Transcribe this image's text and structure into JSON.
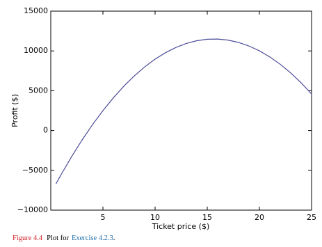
{
  "chart_data": {
    "type": "line",
    "xlabel": "Ticket price ($)",
    "ylabel": "Profit ($)",
    "x": [
      0.5,
      1,
      2,
      3,
      4,
      5,
      6,
      7,
      8,
      9,
      10,
      11,
      12,
      13,
      14,
      15,
      16,
      17,
      18,
      19,
      20,
      21,
      22,
      23,
      24,
      25
    ],
    "series": [
      {
        "color": "#4b4b99",
        "values": [
          -6700,
          -5519,
          -3276,
          -1191,
          735,
          2502,
          4112,
          5563,
          6855,
          7989,
          8965,
          9782,
          10441,
          10942,
          11284,
          11468,
          11493,
          11360,
          11068,
          10618,
          10010,
          9243,
          8318,
          7235,
          5993,
          4593
        ]
      }
    ],
    "xlim": [
      0,
      25
    ],
    "xticks": [
      5,
      10,
      15,
      20,
      25
    ],
    "ylim": [
      -10000,
      15000
    ],
    "yticks": [
      {
        "value": -10000,
        "label": "−10000"
      },
      {
        "value": -5000,
        "label": "−5000"
      },
      0,
      5000,
      10000,
      15000
    ]
  },
  "caption": {
    "label": "Figure 4.4",
    "text": "Plot for",
    "link": "Exercise 4.2.3",
    "end": "."
  }
}
